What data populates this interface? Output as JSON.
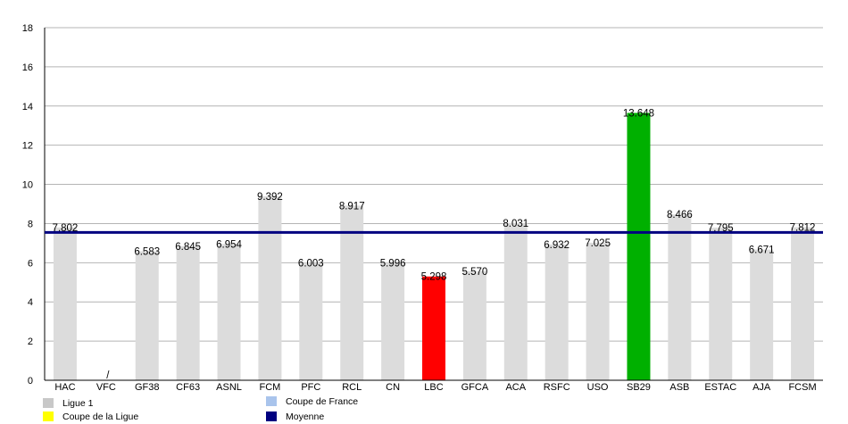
{
  "chart_data": {
    "type": "bar",
    "categories": [
      "HAC",
      "VFC",
      "GF38",
      "CF63",
      "ASNL",
      "FCM",
      "PFC",
      "RCL",
      "CN",
      "LBC",
      "GFCA",
      "ACA",
      "RSFC",
      "USO",
      "SB29",
      "ASB",
      "ESTAC",
      "AJA",
      "FCSM"
    ],
    "values": [
      7.802,
      null,
      6.583,
      6.845,
      6.954,
      9.392,
      6.003,
      8.917,
      5.996,
      5.298,
      5.57,
      8.031,
      6.932,
      7.025,
      13.648,
      8.466,
      7.795,
      6.671,
      7.812
    ],
    "value_labels": [
      "7.802",
      "/",
      "6.583",
      "6.845",
      "6.954",
      "9.392",
      "6.003",
      "8.917",
      "5.996",
      "5.298",
      "5.570",
      "8.031",
      "6.932",
      "7.025",
      "13.648",
      "8.466",
      "7.795",
      "6.671",
      "7.812"
    ],
    "bar_series": [
      "Ligue 1",
      "Ligue 1",
      "Ligue 1",
      "Ligue 1",
      "Ligue 1",
      "Ligue 1",
      "Ligue 1",
      "Ligue 1",
      "Ligue 1",
      "Coupe de la Ligue*",
      "Ligue 1",
      "Ligue 1",
      "Ligue 1",
      "Ligue 1",
      "Green*",
      "Ligue 1",
      "Ligue 1",
      "Ligue 1",
      "Ligue 1"
    ],
    "bar_colors": [
      "#dcdcdc",
      "#dcdcdc",
      "#dcdcdc",
      "#dcdcdc",
      "#dcdcdc",
      "#dcdcdc",
      "#dcdcdc",
      "#dcdcdc",
      "#dcdcdc",
      "#ff0000",
      "#dcdcdc",
      "#dcdcdc",
      "#dcdcdc",
      "#dcdcdc",
      "#00b000",
      "#dcdcdc",
      "#dcdcdc",
      "#dcdcdc",
      "#dcdcdc"
    ],
    "average": 7.55,
    "average_color": "#000080",
    "ylim": [
      0,
      18
    ],
    "yticks": [
      0,
      2,
      4,
      6,
      8,
      10,
      12,
      14,
      16,
      18
    ],
    "grid": true,
    "legend_placement": "bottom",
    "legend": [
      {
        "label": "Ligue 1",
        "color": "#c8c8c8"
      },
      {
        "label": "Coupe de France",
        "color": "#a9c4ec"
      },
      {
        "label": "Coupe de la Ligue",
        "color": "#ffff00"
      },
      {
        "label": "Moyenne",
        "color": "#000080"
      }
    ]
  }
}
